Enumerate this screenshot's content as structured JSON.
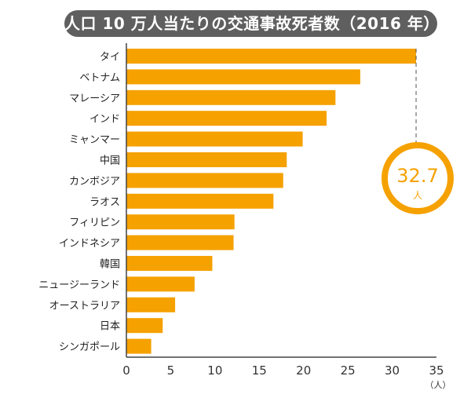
{
  "chart_data": {
    "type": "bar",
    "orientation": "horizontal",
    "title": "人口 10 万人当たりの交通事故死者数（2016 年）",
    "categories": [
      "タイ",
      "ベトナム",
      "マレーシア",
      "インド",
      "ミャンマー",
      "中国",
      "カンボジア",
      "ラオス",
      "フィリピン",
      "インドネシア",
      "韓国",
      "ニュージーランド",
      "オーストラリア",
      "日本",
      "シンガポール"
    ],
    "values": [
      32.7,
      26.4,
      23.6,
      22.6,
      19.9,
      18.1,
      17.7,
      16.6,
      12.2,
      12.1,
      9.7,
      7.7,
      5.5,
      4.1,
      2.8
    ],
    "xlim": [
      0,
      35
    ],
    "xticks": [
      "0",
      "5",
      "10",
      "15",
      "20",
      "25",
      "30",
      "35"
    ],
    "xunit": "（人）",
    "grid": false,
    "bar_color": "#f5a100",
    "callout": {
      "value": "32.7",
      "unit": "人",
      "target": "タイ"
    }
  }
}
